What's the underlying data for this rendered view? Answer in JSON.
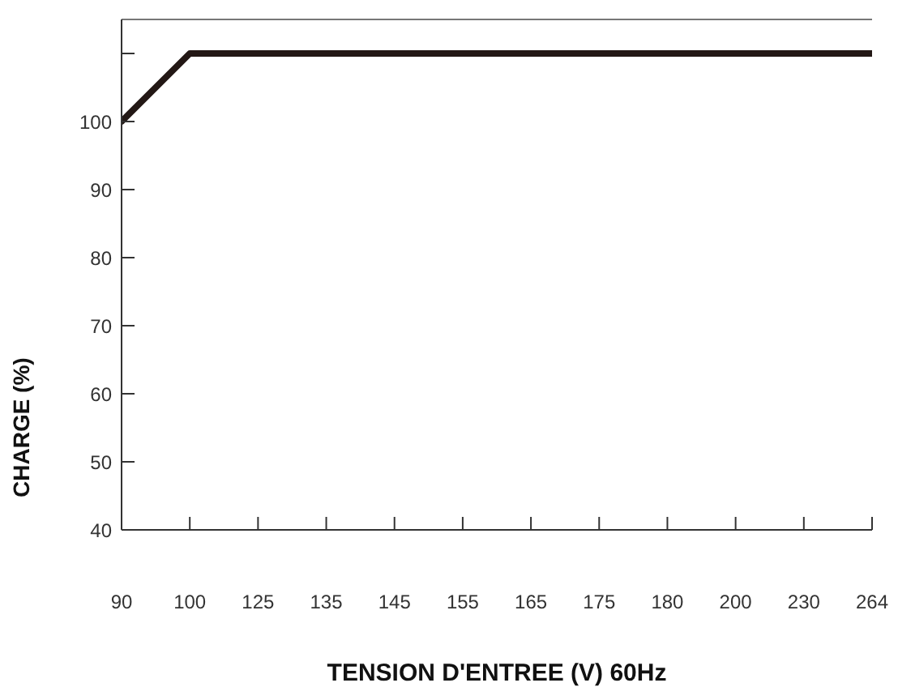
{
  "chart_data": {
    "type": "line",
    "xlabel": "TENSION D'ENTREE (V) 60Hz",
    "ylabel": "CHARGE (%)",
    "categories": [
      "90",
      "100",
      "125",
      "135",
      "145",
      "155",
      "165",
      "175",
      "180",
      "200",
      "230",
      "264"
    ],
    "series": [
      {
        "color": "#231815",
        "values": [
          100,
          110,
          110,
          110,
          110,
          110,
          110,
          110,
          110,
          110,
          110,
          110
        ]
      }
    ],
    "ylim": [
      40,
      115
    ],
    "yticks": [
      40,
      50,
      60,
      70,
      80,
      90,
      100,
      {
        "value": 110,
        "label": null
      }
    ],
    "grid": false,
    "legend": false,
    "marker": "none",
    "line_style": "solid"
  }
}
